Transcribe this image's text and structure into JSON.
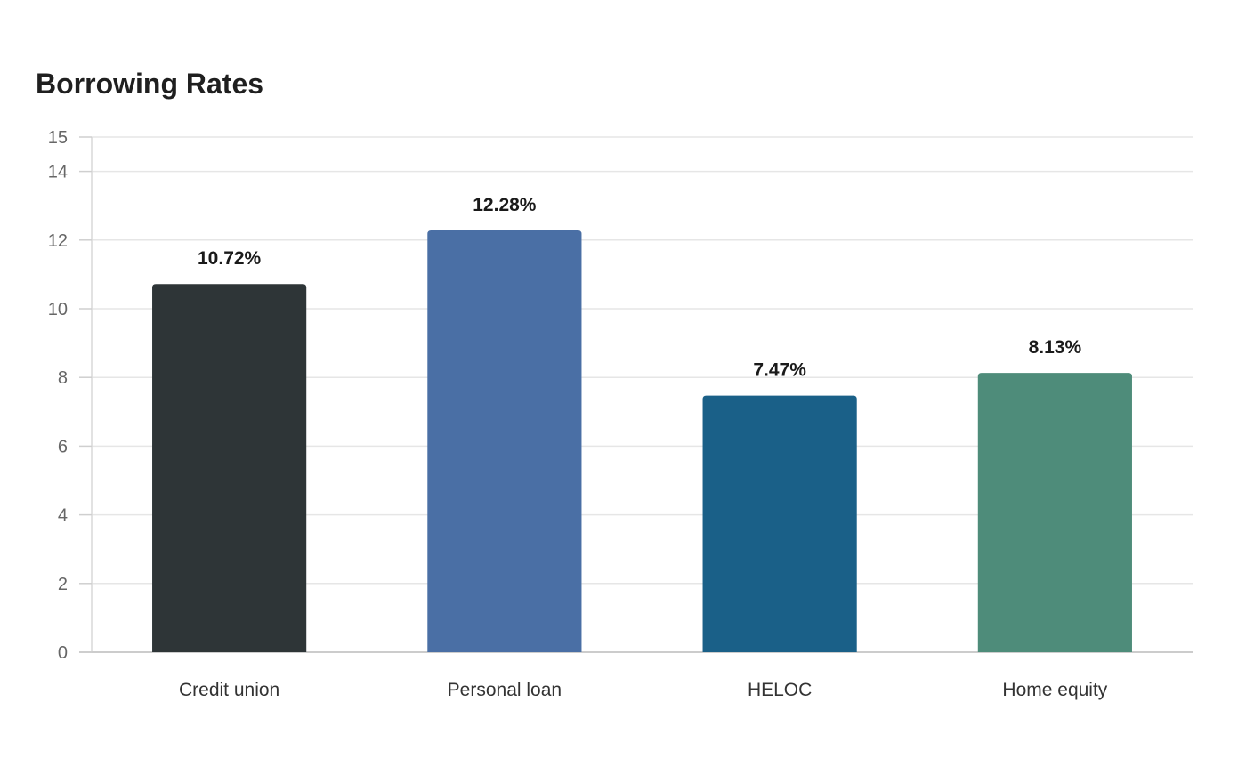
{
  "chart_data": {
    "type": "bar",
    "title": "Borrowing Rates",
    "xlabel": "",
    "ylabel": "",
    "categories": [
      "Credit union",
      "Personal loan",
      "HELOC",
      "Home equity"
    ],
    "values": [
      10.72,
      12.28,
      7.47,
      8.13
    ],
    "value_labels": [
      "10.72%",
      "12.28%",
      "7.47%",
      "8.13%"
    ],
    "colors": [
      "#2e3537",
      "#4a6fa5",
      "#1a6088",
      "#4e8c7a"
    ],
    "ylim": [
      0,
      15
    ],
    "yticks": [
      0,
      2,
      4,
      6,
      8,
      10,
      12,
      14,
      15
    ],
    "grid": true,
    "legend": "none"
  }
}
